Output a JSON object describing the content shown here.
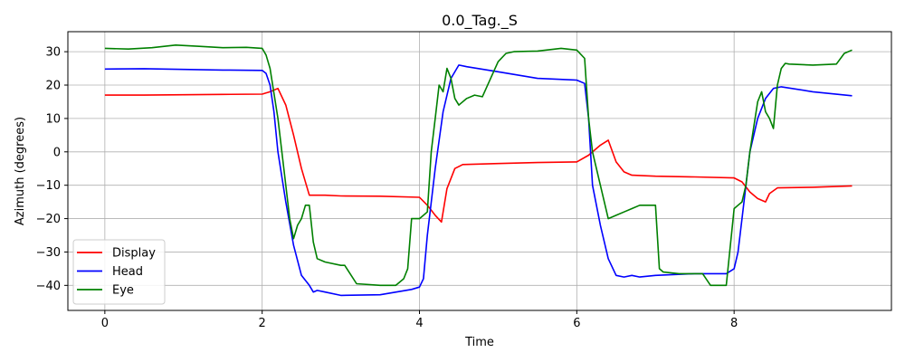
{
  "chart_data": {
    "type": "line",
    "title": "0.0_Tag._S",
    "xlabel": "Time",
    "ylabel": "Azimuth (degrees)",
    "xlim": [
      -0.47,
      10.0
    ],
    "ylim": [
      -47.5,
      36.0
    ],
    "xticks": [
      0,
      2,
      4,
      6,
      8
    ],
    "yticks": [
      -40,
      -30,
      -20,
      -10,
      0,
      10,
      20,
      30
    ],
    "grid": true,
    "legend_position": "lower-left",
    "series": [
      {
        "name": "Display",
        "color": "#ff0000",
        "x": [
          0,
          0.5,
          1.0,
          1.5,
          2.0,
          2.1,
          2.2,
          2.3,
          2.4,
          2.5,
          2.6,
          2.8,
          3.0,
          3.5,
          4.0,
          4.1,
          4.2,
          4.28,
          4.35,
          4.45,
          4.55,
          5.0,
          5.5,
          6.0,
          6.15,
          6.3,
          6.4,
          6.5,
          6.6,
          6.7,
          7.0,
          7.5,
          8.0,
          8.1,
          8.2,
          8.3,
          8.4,
          8.45,
          8.55,
          9.0,
          9.5
        ],
        "y": [
          17,
          17,
          17.1,
          17.2,
          17.3,
          18,
          19,
          14,
          5,
          -5,
          -13,
          -13,
          -13.2,
          -13.3,
          -13.6,
          -16,
          -19,
          -21,
          -11,
          -5,
          -3.8,
          -3.5,
          -3.2,
          -3.0,
          -1,
          2,
          3.5,
          -3,
          -6,
          -7,
          -7.3,
          -7.5,
          -7.8,
          -9,
          -12,
          -14,
          -15,
          -12.5,
          -10.8,
          -10.6,
          -10.2
        ]
      },
      {
        "name": "Head",
        "color": "#0000ff",
        "x": [
          0,
          0.5,
          1.0,
          1.5,
          2.0,
          2.05,
          2.1,
          2.15,
          2.2,
          2.3,
          2.4,
          2.5,
          2.6,
          2.65,
          2.7,
          2.8,
          3.0,
          3.5,
          3.9,
          4.0,
          4.05,
          4.1,
          4.2,
          4.3,
          4.4,
          4.5,
          4.6,
          5.0,
          5.5,
          6.0,
          6.1,
          6.15,
          6.2,
          6.3,
          6.4,
          6.5,
          6.6,
          6.7,
          6.8,
          7.0,
          7.5,
          7.9,
          8.0,
          8.05,
          8.1,
          8.2,
          8.3,
          8.4,
          8.5,
          8.6,
          9.0,
          9.5
        ],
        "y": [
          24.8,
          24.9,
          24.7,
          24.5,
          24.4,
          23.5,
          20,
          12,
          0,
          -15,
          -28,
          -37,
          -40,
          -42,
          -41.5,
          -42,
          -43,
          -42.8,
          -41.2,
          -40.5,
          -38,
          -25,
          -5,
          12,
          22,
          26,
          25.5,
          24,
          22,
          21.5,
          20.5,
          10,
          -10,
          -22,
          -32,
          -37,
          -37.5,
          -37,
          -37.5,
          -37,
          -36.5,
          -36.5,
          -35,
          -30,
          -20,
          0,
          10,
          16,
          19,
          19.5,
          18,
          16.8
        ]
      },
      {
        "name": "Eye",
        "color": "#008000",
        "x": [
          0,
          0.3,
          0.6,
          0.9,
          1.2,
          1.5,
          1.8,
          2.0,
          2.05,
          2.1,
          2.2,
          2.3,
          2.35,
          2.4,
          2.45,
          2.5,
          2.55,
          2.6,
          2.65,
          2.7,
          2.8,
          3.0,
          3.05,
          3.2,
          3.5,
          3.7,
          3.8,
          3.85,
          3.9,
          4.0,
          4.05,
          4.1,
          4.15,
          4.2,
          4.25,
          4.3,
          4.35,
          4.4,
          4.45,
          4.5,
          4.6,
          4.7,
          4.8,
          5.0,
          5.1,
          5.2,
          5.5,
          5.8,
          6.0,
          6.1,
          6.15,
          6.2,
          6.3,
          6.4,
          6.5,
          6.6,
          6.7,
          6.8,
          7.0,
          7.05,
          7.1,
          7.3,
          7.5,
          7.6,
          7.7,
          7.8,
          7.9,
          8.0,
          8.05,
          8.1,
          8.15,
          8.2,
          8.3,
          8.35,
          8.4,
          8.45,
          8.5,
          8.55,
          8.6,
          8.65,
          8.7,
          9.0,
          9.3,
          9.4,
          9.5
        ],
        "y": [
          31,
          30.8,
          31.2,
          32,
          31.6,
          31.2,
          31.3,
          31,
          29,
          25,
          10,
          -10,
          -20,
          -26,
          -22,
          -20,
          -16,
          -16,
          -27,
          -32,
          -33,
          -34,
          -34,
          -39.5,
          -40,
          -40,
          -38,
          -35,
          -20,
          -20,
          -19,
          -18,
          0,
          10,
          20,
          18,
          25,
          22,
          16,
          14,
          16,
          17,
          16.5,
          27,
          29.5,
          30,
          30.2,
          31,
          30.5,
          28,
          10,
          0,
          -10,
          -20,
          -19,
          -18,
          -17,
          -16,
          -16,
          -35,
          -36,
          -36.5,
          -36.5,
          -36.5,
          -40,
          -40,
          -40,
          -17,
          -16,
          -15,
          -10,
          0,
          15,
          18,
          12,
          10,
          7,
          20,
          25,
          26.5,
          26.3,
          26,
          26.3,
          29.5,
          30.5
        ]
      }
    ]
  }
}
